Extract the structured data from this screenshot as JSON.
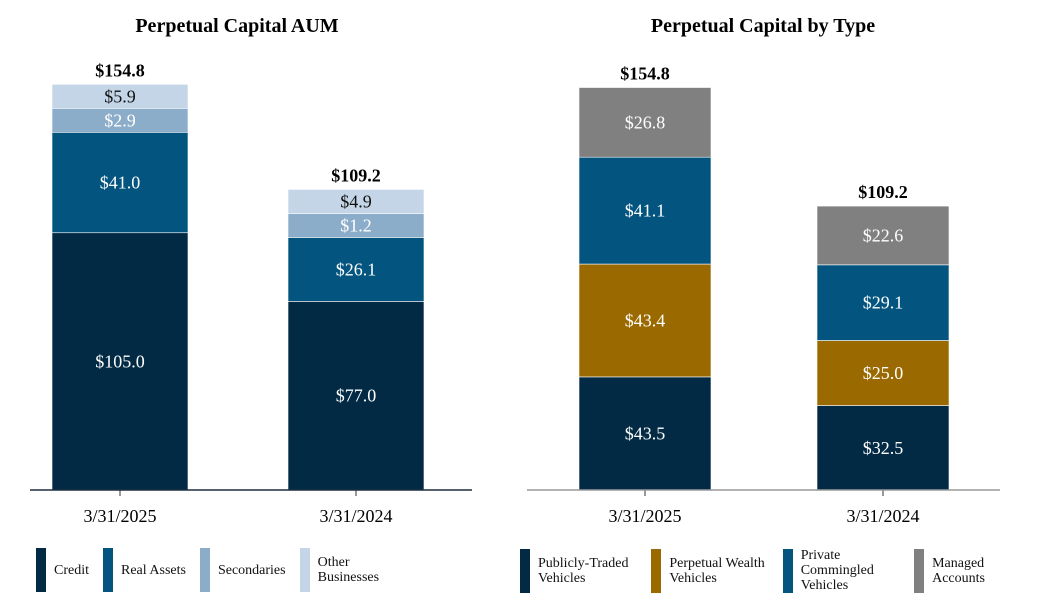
{
  "chart_data": [
    {
      "type": "bar",
      "stacked": true,
      "title": "Perpetual Capital AUM",
      "categories": [
        "3/31/2025",
        "3/31/2024"
      ],
      "totals": [
        "$154.8",
        "$109.2"
      ],
      "series": [
        {
          "name": "Credit",
          "color": "#022a44",
          "values": [
            105.0,
            77.0
          ],
          "labels": [
            "$105.0",
            "$77.0"
          ],
          "label_color": "#ffffff"
        },
        {
          "name": "Real Assets",
          "color": "#03557f",
          "values": [
            41.0,
            26.1
          ],
          "labels": [
            "$41.0",
            "$26.1"
          ],
          "label_color": "#ffffff"
        },
        {
          "name": "Secondaries",
          "color": "#8badc9",
          "values": [
            2.9,
            1.2
          ],
          "labels": [
            "$2.9",
            "$1.2"
          ],
          "label_color": "#ffffff"
        },
        {
          "name": "Other Businesses",
          "color": "#c3d5e7",
          "values": [
            5.9,
            4.9
          ],
          "labels": [
            "$5.9",
            "$4.9"
          ],
          "label_color": "#111111"
        }
      ],
      "legend": "bottom",
      "grid": false
    },
    {
      "type": "bar",
      "stacked": true,
      "title": "Perpetual Capital by Type",
      "categories": [
        "3/31/2025",
        "3/31/2024"
      ],
      "totals": [
        "$154.8",
        "$109.2"
      ],
      "series": [
        {
          "name": "Publicly-Traded Vehicles",
          "color": "#022a44",
          "values": [
            43.5,
            32.5
          ],
          "labels": [
            "$43.5",
            "$32.5"
          ],
          "label_color": "#ffffff"
        },
        {
          "name": "Perpetual Wealth Vehicles",
          "color": "#9a6a00",
          "values": [
            43.4,
            25.0
          ],
          "labels": [
            "$43.4",
            "$25.0"
          ],
          "label_color": "#ffffff"
        },
        {
          "name": "Private Commingled Vehicles",
          "color": "#03557f",
          "values": [
            41.1,
            29.1
          ],
          "labels": [
            "$41.1",
            "$29.1"
          ],
          "label_color": "#ffffff"
        },
        {
          "name": "Managed Accounts",
          "color": "#808080",
          "values": [
            26.8,
            22.6
          ],
          "labels": [
            "$26.8",
            "$22.6"
          ],
          "label_color": "#ffffff"
        }
      ],
      "legend": "bottom",
      "grid": false
    }
  ]
}
